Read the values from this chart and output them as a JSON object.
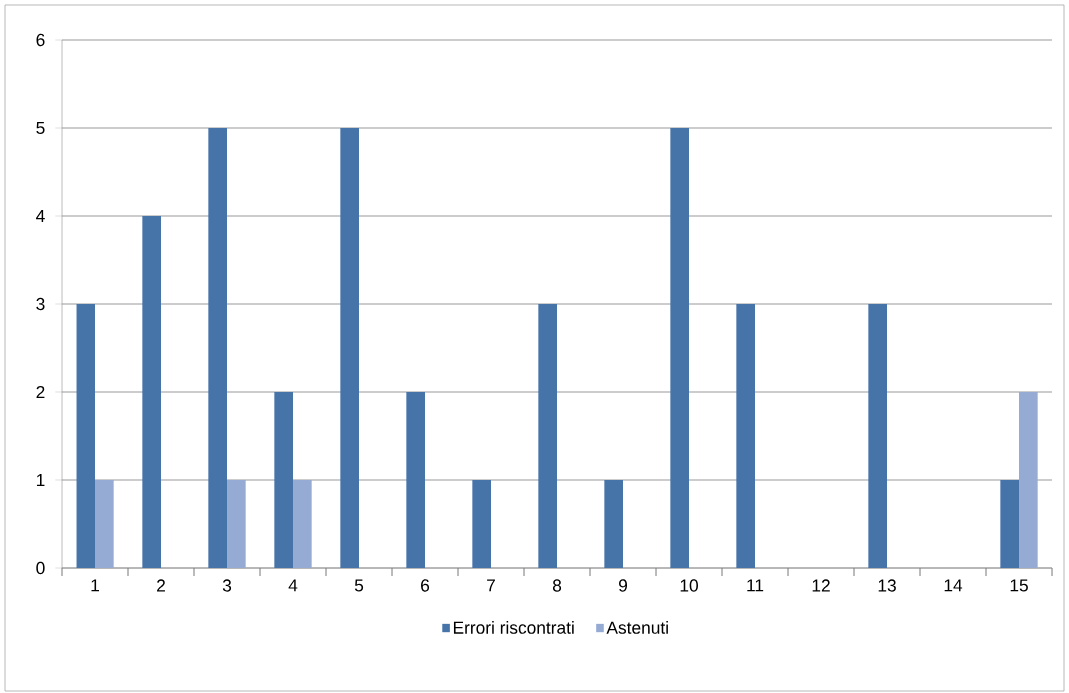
{
  "chart_data": {
    "type": "bar",
    "categories": [
      "1",
      "2",
      "3",
      "4",
      "5",
      "6",
      "7",
      "8",
      "9",
      "10",
      "11",
      "12",
      "13",
      "14",
      "15"
    ],
    "series": [
      {
        "name": "Errori riscontrati",
        "color": "#4674a9",
        "values": [
          3,
          4,
          5,
          2,
          5,
          2,
          1,
          3,
          1,
          5,
          3,
          0,
          3,
          0,
          1
        ]
      },
      {
        "name": "Astenuti",
        "color": "#95abd3",
        "values": [
          1,
          0,
          1,
          1,
          0,
          0,
          0,
          0,
          0,
          0,
          0,
          0,
          0,
          0,
          2
        ]
      }
    ],
    "ylim": [
      0,
      6
    ],
    "yticks": [
      0,
      1,
      2,
      3,
      4,
      5,
      6
    ],
    "grid": "y",
    "legend": "bottom"
  }
}
